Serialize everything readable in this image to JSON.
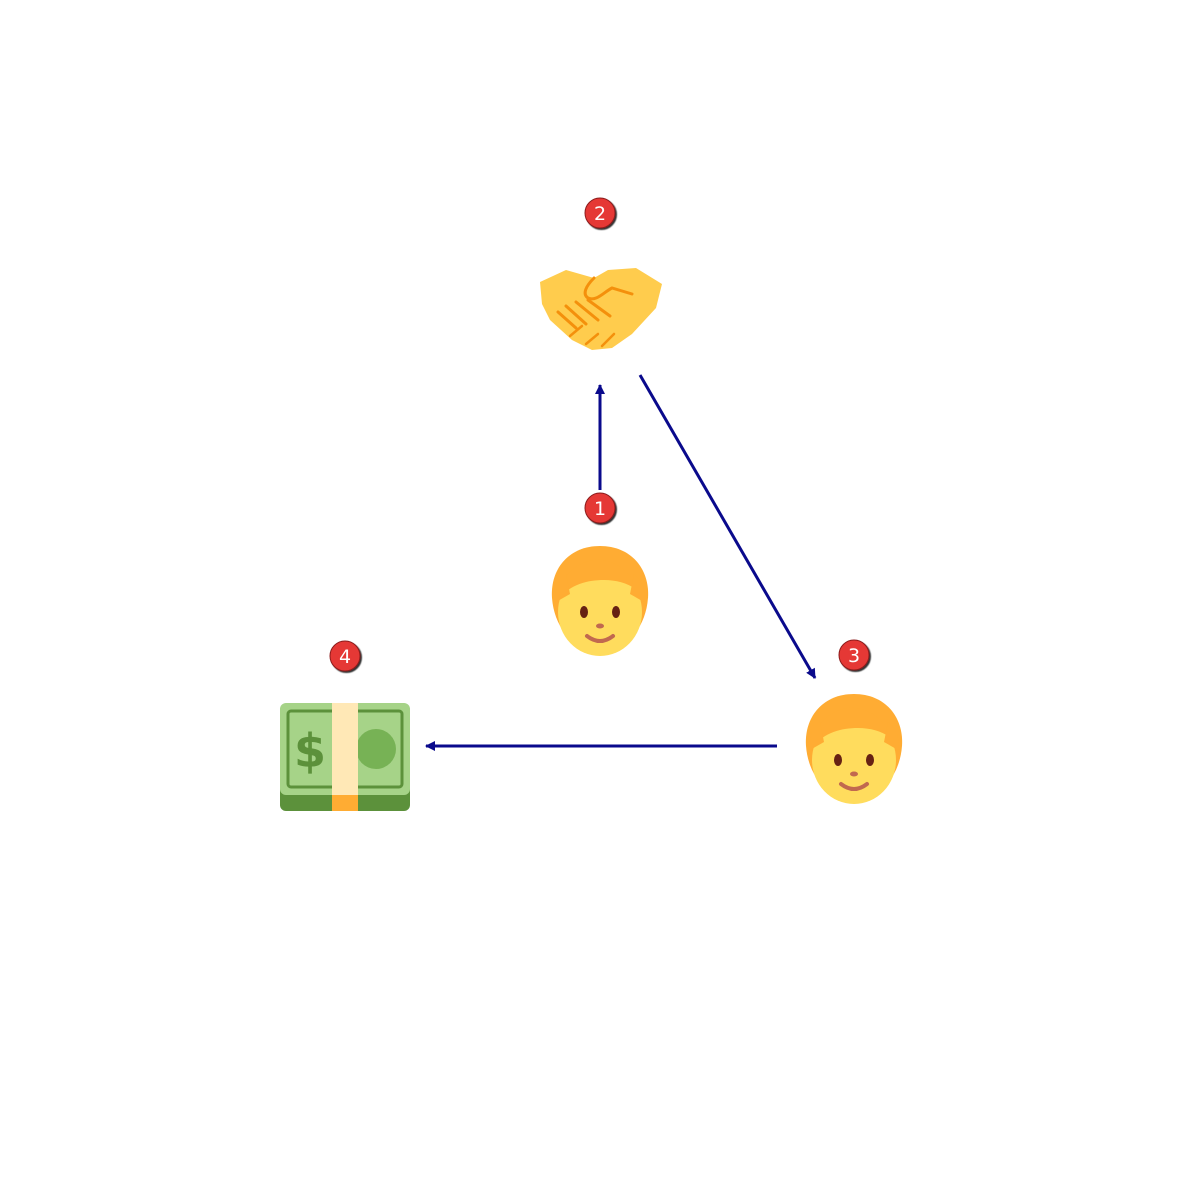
{
  "diagram": {
    "nodes": [
      {
        "id": "person-1",
        "icon": "person-icon",
        "badge": "1"
      },
      {
        "id": "handshake",
        "icon": "handshake-icon",
        "badge": "2"
      },
      {
        "id": "person-3",
        "icon": "person-icon",
        "badge": "3"
      },
      {
        "id": "money",
        "icon": "money-bundle-icon",
        "badge": "4"
      }
    ],
    "edges": [
      {
        "from": "person-1",
        "to": "handshake"
      },
      {
        "from": "handshake",
        "to": "person-3"
      },
      {
        "from": "person-3",
        "to": "money"
      }
    ],
    "colors": {
      "arrow": "#0a0a8c",
      "badge": "#e53935",
      "badge_text": "#ffffff",
      "skin": "#ffdc5d",
      "hair": "#ffac33",
      "money_light": "#a6d388",
      "money_dark": "#5c913b",
      "money_band": "#ffe8b6",
      "money_band_dark": "#ffac33"
    }
  }
}
